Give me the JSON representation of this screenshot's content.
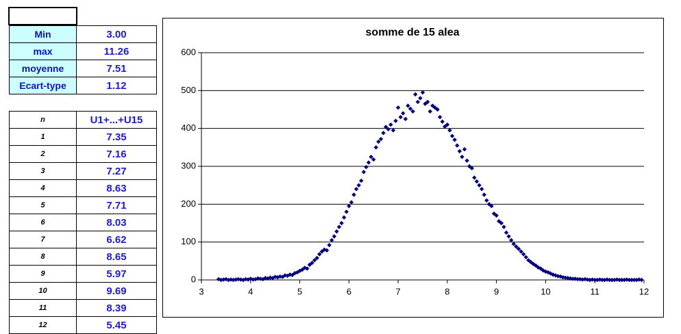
{
  "stats_table": {
    "rows": [
      [
        "Min",
        "3.00"
      ],
      [
        "max",
        "11.26"
      ],
      [
        "moyenne",
        "7.51"
      ],
      [
        "Ecart-type",
        "1.12"
      ]
    ]
  },
  "data_table": {
    "header": [
      "n",
      "U1+...+U15"
    ],
    "rows": [
      [
        "1",
        "7.35"
      ],
      [
        "2",
        "7.16"
      ],
      [
        "3",
        "7.27"
      ],
      [
        "4",
        "8.63"
      ],
      [
        "5",
        "7.71"
      ],
      [
        "6",
        "8.03"
      ],
      [
        "7",
        "6.62"
      ],
      [
        "8",
        "8.65"
      ],
      [
        "9",
        "5.97"
      ],
      [
        "10",
        "9.69"
      ],
      [
        "11",
        "8.39"
      ],
      [
        "12",
        "5.45"
      ]
    ]
  },
  "chart_data": {
    "type": "scatter",
    "title": "somme de 15 alea",
    "color": "#000080",
    "grid": true,
    "xlim": [
      3,
      12
    ],
    "xticks": [
      3,
      4,
      5,
      6,
      7,
      8,
      9,
      10,
      11,
      12
    ],
    "ylim": [
      0,
      600
    ],
    "yticks": [
      0,
      100,
      200,
      300,
      400,
      500,
      600
    ],
    "x": [
      3.35,
      3.4,
      3.45,
      3.5,
      3.55,
      3.6,
      3.65,
      3.7,
      3.75,
      3.8,
      3.85,
      3.9,
      3.95,
      4,
      4.05,
      4.1,
      4.15,
      4.2,
      4.25,
      4.3,
      4.35,
      4.4,
      4.45,
      4.5,
      4.55,
      4.6,
      4.65,
      4.7,
      4.75,
      4.8,
      4.85,
      4.9,
      4.95,
      5,
      5.05,
      5.1,
      5.15,
      5.2,
      5.25,
      5.3,
      5.35,
      5.4,
      5.45,
      5.5,
      5.55,
      5.6,
      5.65,
      5.7,
      5.75,
      5.8,
      5.85,
      5.9,
      5.95,
      6,
      6.05,
      6.1,
      6.15,
      6.2,
      6.25,
      6.3,
      6.35,
      6.4,
      6.45,
      6.5,
      6.55,
      6.6,
      6.65,
      6.7,
      6.75,
      6.8,
      6.85,
      6.9,
      6.95,
      7,
      7.05,
      7.1,
      7.15,
      7.2,
      7.25,
      7.3,
      7.35,
      7.4,
      7.45,
      7.5,
      7.55,
      7.6,
      7.65,
      7.7,
      7.75,
      7.8,
      7.85,
      7.9,
      7.95,
      8,
      8.05,
      8.1,
      8.15,
      8.2,
      8.25,
      8.3,
      8.35,
      8.4,
      8.45,
      8.5,
      8.55,
      8.6,
      8.65,
      8.7,
      8.75,
      8.8,
      8.85,
      8.9,
      8.95,
      9,
      9.05,
      9.1,
      9.15,
      9.2,
      9.25,
      9.3,
      9.35,
      9.4,
      9.45,
      9.5,
      9.55,
      9.6,
      9.65,
      9.7,
      9.75,
      9.8,
      9.85,
      9.9,
      9.95,
      10,
      10.05,
      10.1,
      10.15,
      10.2,
      10.25,
      10.3,
      10.35,
      10.4,
      10.45,
      10.5,
      10.55,
      10.6,
      10.65,
      10.7,
      10.75,
      10.8,
      10.85,
      10.9,
      10.95,
      11,
      11.05,
      11.1,
      11.15,
      11.2,
      11.25,
      11.3,
      11.35,
      11.4,
      11.45,
      11.5,
      11.55,
      11.6,
      11.65,
      11.7,
      11.75,
      11.8,
      11.85,
      11.9,
      11.95
    ],
    "values": [
      2,
      0,
      1,
      2,
      0,
      1,
      0,
      1,
      2,
      1,
      0,
      2,
      1,
      3,
      1,
      2,
      4,
      3,
      2,
      5,
      4,
      6,
      5,
      8,
      7,
      9,
      8,
      12,
      11,
      14,
      13,
      18,
      20,
      24,
      27,
      32,
      30,
      40,
      45,
      52,
      58,
      68,
      75,
      80,
      78,
      92,
      105,
      115,
      128,
      140,
      150,
      165,
      180,
      195,
      205,
      225,
      240,
      250,
      262,
      285,
      298,
      310,
      325,
      318,
      350,
      365,
      372,
      388,
      404,
      398,
      410,
      395,
      420,
      455,
      430,
      440,
      425,
      460,
      452,
      445,
      490,
      470,
      480,
      495,
      465,
      470,
      445,
      460,
      455,
      450,
      430,
      418,
      405,
      410,
      395,
      380,
      370,
      355,
      340,
      325,
      345,
      315,
      300,
      295,
      270,
      260,
      250,
      240,
      225,
      210,
      200,
      195,
      175,
      170,
      155,
      150,
      140,
      125,
      115,
      105,
      95,
      88,
      82,
      75,
      68,
      60,
      52,
      47,
      42,
      38,
      33,
      30,
      25,
      22,
      20,
      17,
      14,
      12,
      10,
      9,
      7,
      6,
      5,
      4,
      3,
      3,
      2,
      2,
      1,
      2,
      1,
      0,
      1,
      0,
      0,
      1,
      0,
      0,
      1,
      0,
      0,
      0,
      1,
      0,
      0,
      0,
      1,
      0,
      0,
      0,
      0,
      1,
      0
    ]
  }
}
